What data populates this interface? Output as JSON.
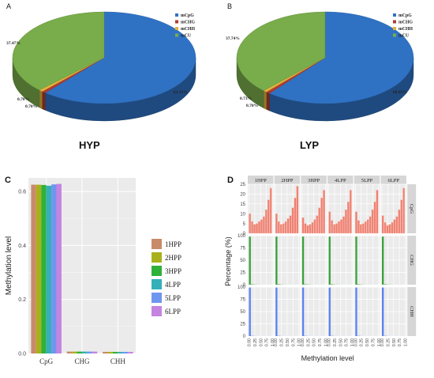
{
  "panels": {
    "a": "A",
    "b": "B",
    "c": "C",
    "d": "D"
  },
  "colors": {
    "mCpG": "#2f72c4",
    "mCHG": "#b03a2e",
    "mCHH": "#e2b23c",
    "mCU": "#79ac4a",
    "1HPP": "#c98a6a",
    "2HPP": "#a9b11a",
    "3HPP": "#2fb13a",
    "4LPP": "#35b0b8",
    "5LPP": "#6f96ee",
    "6LPP": "#c484e0",
    "d_cpg": "#f08070",
    "d_chg": "#3aa23a",
    "d_chh": "#5a83ee"
  },
  "chart_data": [
    {
      "type": "pie",
      "subtitle": "HYP",
      "legend": [
        "mCpG",
        "mCHG",
        "mCHH",
        "mCU"
      ],
      "legend_position": "top-right",
      "values": [
        61.13,
        0.7,
        0.7,
        37.47
      ],
      "labels": [
        "61.13%",
        "0.70%",
        "0.70%",
        "37.47%"
      ]
    },
    {
      "type": "pie",
      "subtitle": "LYP",
      "legend": [
        "mCpG",
        "mCHG",
        "mCHH",
        "mCU"
      ],
      "legend_position": "top-right",
      "values": [
        60.83,
        0.73,
        0.7,
        37.74
      ],
      "labels": [
        "60.83%",
        "0.73%",
        "0.70%",
        "37.74%"
      ]
    },
    {
      "type": "bar",
      "ylabel": "Methylation level",
      "categories": [
        "CpG",
        "CHG",
        "CHH"
      ],
      "ylim": [
        0,
        0.65
      ],
      "yticks": [
        "0.0",
        "0.2",
        "0.4",
        "0.6"
      ],
      "legend_position": "right",
      "series": [
        {
          "name": "1HPP",
          "values": [
            0.625,
            0.007,
            0.006
          ]
        },
        {
          "name": "2HPP",
          "values": [
            0.625,
            0.007,
            0.006
          ]
        },
        {
          "name": "3HPP",
          "values": [
            0.624,
            0.007,
            0.006
          ]
        },
        {
          "name": "4LPP",
          "values": [
            0.621,
            0.007,
            0.006
          ]
        },
        {
          "name": "5LPP",
          "values": [
            0.626,
            0.007,
            0.006
          ]
        },
        {
          "name": "6LPP",
          "values": [
            0.628,
            0.007,
            0.006
          ]
        }
      ]
    },
    {
      "type": "bar",
      "xlabel": "Methylation level",
      "ylabel": "Percentage (%)",
      "facet_columns": [
        "1HPP",
        "2HPP",
        "3HPP",
        "4LPP",
        "5LPP",
        "6LPP"
      ],
      "facet_rows": [
        "CpG",
        "CHG",
        "CHH"
      ],
      "x_ticks": [
        "0.00",
        "0.25",
        "0.50",
        "0.75",
        "1.00"
      ],
      "y_ticks": {
        "CpG": [
          "0",
          "5",
          "10",
          "15",
          "20",
          "25"
        ],
        "CHG": [
          "0",
          "25",
          "50",
          "75",
          "100"
        ],
        "CHH": [
          "0",
          "25",
          "50",
          "75",
          "100"
        ]
      },
      "x_bins": [
        0.05,
        0.15,
        0.25,
        0.35,
        0.45,
        0.55,
        0.65,
        0.75,
        0.85,
        0.95
      ],
      "cpg": {
        "1HPP": [
          10,
          6,
          4.5,
          5,
          6,
          7,
          8.5,
          12,
          17,
          23
        ],
        "2HPP": [
          10,
          6,
          4.5,
          5,
          6,
          7.5,
          9,
          13,
          18,
          24
        ],
        "3HPP": [
          8,
          5,
          4,
          4.5,
          5.5,
          7,
          9,
          13,
          18,
          22
        ],
        "4LPP": [
          11,
          6.5,
          4.5,
          5,
          6,
          7,
          8.5,
          12,
          16,
          22
        ],
        "5LPP": [
          11,
          6.5,
          4.5,
          5,
          6,
          7,
          8.5,
          12,
          16,
          22
        ],
        "6LPP": [
          9,
          5.5,
          4,
          4.5,
          5.5,
          7,
          8.5,
          12,
          17,
          23
        ]
      },
      "chg": [
        98,
        1,
        0.5,
        0.3,
        0.2,
        0.1,
        0.1,
        0.1,
        0.1,
        0.1
      ],
      "chh": [
        99,
        0.6,
        0.3,
        0.1,
        0.1,
        0.1,
        0.1,
        0.1,
        0.1,
        0.1
      ]
    }
  ]
}
